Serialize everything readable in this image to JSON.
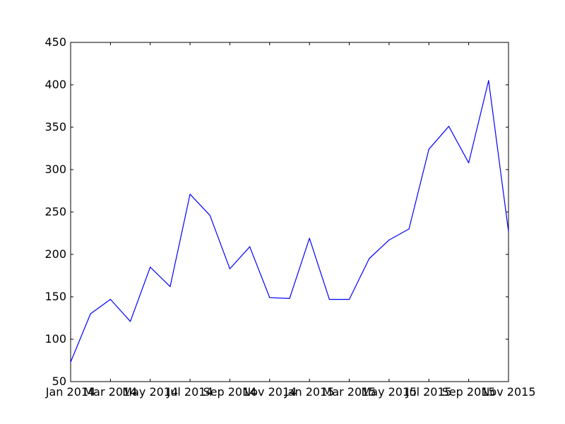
{
  "chart_data": {
    "type": "line",
    "title": "",
    "xlabel": "",
    "ylabel": "",
    "ylim": [
      50,
      450
    ],
    "yticks": [
      50,
      100,
      150,
      200,
      250,
      300,
      350,
      400,
      450
    ],
    "xlim": [
      "2014-01",
      "2015-11"
    ],
    "xticks": [
      {
        "date": "2014-01",
        "label": "Jan 2014"
      },
      {
        "date": "2014-03",
        "label": "Mar 2014"
      },
      {
        "date": "2014-05",
        "label": "May 2014"
      },
      {
        "date": "2014-07",
        "label": "Jul 2014"
      },
      {
        "date": "2014-09",
        "label": "Sep 2014"
      },
      {
        "date": "2014-11",
        "label": "Nov 2014"
      },
      {
        "date": "2015-01",
        "label": "Jan 2015"
      },
      {
        "date": "2015-03",
        "label": "Mar 2015"
      },
      {
        "date": "2015-05",
        "label": "May 2015"
      },
      {
        "date": "2015-07",
        "label": "Jul 2015"
      },
      {
        "date": "2015-09",
        "label": "Sep 2015"
      },
      {
        "date": "2015-11",
        "label": "Nov 2015"
      }
    ],
    "grid": false,
    "series": [
      {
        "color": "#0000ff",
        "points": [
          {
            "x": "2014-01",
            "y": 73
          },
          {
            "x": "2014-02",
            "y": 130
          },
          {
            "x": "2014-03",
            "y": 147
          },
          {
            "x": "2014-04",
            "y": 121
          },
          {
            "x": "2014-05",
            "y": 185
          },
          {
            "x": "2014-06",
            "y": 162
          },
          {
            "x": "2014-07",
            "y": 271
          },
          {
            "x": "2014-08",
            "y": 246
          },
          {
            "x": "2014-09",
            "y": 183
          },
          {
            "x": "2014-10",
            "y": 209
          },
          {
            "x": "2014-11",
            "y": 149
          },
          {
            "x": "2014-12",
            "y": 148
          },
          {
            "x": "2015-01",
            "y": 219
          },
          {
            "x": "2015-02",
            "y": 147
          },
          {
            "x": "2015-03",
            "y": 147
          },
          {
            "x": "2015-04",
            "y": 195
          },
          {
            "x": "2015-05",
            "y": 217
          },
          {
            "x": "2015-06",
            "y": 230
          },
          {
            "x": "2015-07",
            "y": 324
          },
          {
            "x": "2015-08",
            "y": 351
          },
          {
            "x": "2015-09",
            "y": 308
          },
          {
            "x": "2015-10",
            "y": 405
          },
          {
            "x": "2015-11",
            "y": 227
          }
        ]
      }
    ]
  }
}
